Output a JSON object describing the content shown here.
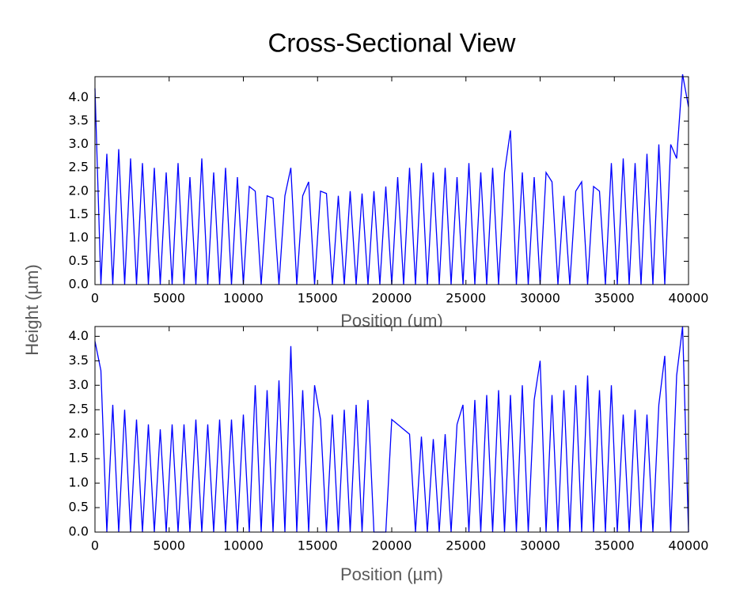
{
  "chart_data": [
    {
      "type": "line",
      "title": "Cross-Sectional View",
      "y_label": "Height (µm)",
      "x_label": "Position (um)",
      "color": "#0000ff",
      "x": [
        0,
        400,
        800,
        1200,
        1600,
        2000,
        2400,
        2800,
        3200,
        3600,
        4000,
        4400,
        4800,
        5200,
        5600,
        6000,
        6400,
        6800,
        7200,
        7600,
        8000,
        8400,
        8800,
        9200,
        9600,
        10000,
        10400,
        10800,
        11200,
        11600,
        12000,
        12400,
        12800,
        13200,
        13600,
        14000,
        14400,
        14800,
        15200,
        15600,
        16000,
        16400,
        16800,
        17200,
        17600,
        18000,
        18400,
        18800,
        19200,
        19600,
        20000,
        20400,
        20800,
        21200,
        21600,
        22000,
        22400,
        22800,
        23200,
        23600,
        24000,
        24400,
        24800,
        25200,
        25600,
        26000,
        26400,
        26800,
        27200,
        27600,
        28000,
        28400,
        28800,
        29200,
        29600,
        30000,
        30400,
        30800,
        31200,
        31600,
        32000,
        32400,
        32800,
        33200,
        33600,
        34000,
        34400,
        34800,
        35200,
        35600,
        36000,
        36400,
        36800,
        37200,
        37600,
        38000,
        38400,
        38800,
        39200,
        39600,
        40000
      ],
      "values": [
        4.2,
        0,
        2.8,
        0,
        2.9,
        0,
        2.7,
        0,
        2.6,
        0,
        2.5,
        0,
        2.4,
        0,
        2.6,
        0,
        2.3,
        0,
        2.7,
        0,
        2.4,
        0,
        2.5,
        0,
        2.3,
        0,
        2.1,
        2.0,
        0,
        1.9,
        1.85,
        0,
        1.9,
        2.5,
        0,
        1.9,
        2.2,
        0,
        2.0,
        1.95,
        0,
        1.9,
        0,
        2.0,
        0,
        1.95,
        0,
        2.0,
        0,
        2.1,
        0,
        2.3,
        0,
        2.5,
        0,
        2.6,
        0,
        2.4,
        0,
        2.5,
        0,
        2.3,
        0,
        2.6,
        0,
        2.4,
        0,
        2.5,
        0,
        2.4,
        3.3,
        0,
        2.4,
        0,
        2.3,
        0,
        2.4,
        2.2,
        0,
        1.9,
        0,
        2.0,
        2.2,
        0,
        2.1,
        2.0,
        0,
        2.6,
        0,
        2.7,
        0,
        2.6,
        0,
        2.8,
        0,
        3.0,
        0,
        3.0,
        2.7,
        4.5,
        3.8
      ],
      "xlim": [
        0,
        40000
      ],
      "xticks": [
        0,
        5000,
        10000,
        15000,
        20000,
        25000,
        30000,
        35000,
        40000
      ],
      "ylim": [
        0,
        4.45
      ],
      "yticks": [
        {
          "value": 0,
          "label": "0.0"
        },
        0.5,
        {
          "value": 1,
          "label": "1.0"
        },
        1.5,
        {
          "value": 2,
          "label": "2.0"
        },
        2.5,
        {
          "value": 3,
          "label": "3.0"
        },
        3.5,
        {
          "value": 4,
          "label": "4.0"
        }
      ]
    },
    {
      "type": "line",
      "x_label": "Position (µm)",
      "color": "#0000ff",
      "x": [
        0,
        400,
        800,
        1200,
        1600,
        2000,
        2400,
        2800,
        3200,
        3600,
        4000,
        4400,
        4800,
        5200,
        5600,
        6000,
        6400,
        6800,
        7200,
        7600,
        8000,
        8400,
        8800,
        9200,
        9600,
        10000,
        10400,
        10800,
        11200,
        11600,
        12000,
        12400,
        12800,
        13200,
        13600,
        14000,
        14400,
        14800,
        15200,
        15600,
        16000,
        16400,
        16800,
        17200,
        17600,
        18000,
        18400,
        18800,
        19200,
        19600,
        20000,
        20400,
        20800,
        21200,
        21600,
        22000,
        22400,
        22800,
        23200,
        23600,
        24000,
        24400,
        24800,
        25200,
        25600,
        26000,
        26400,
        26800,
        27200,
        27600,
        28000,
        28400,
        28800,
        29200,
        29600,
        30000,
        30400,
        30800,
        31200,
        31600,
        32000,
        32400,
        32800,
        33200,
        33600,
        34000,
        34400,
        34800,
        35200,
        35600,
        36000,
        36400,
        36800,
        37200,
        37600,
        38000,
        38400,
        38800,
        39200,
        39600,
        40000
      ],
      "values": [
        3.9,
        3.3,
        0,
        2.6,
        0,
        2.5,
        0,
        2.3,
        0,
        2.2,
        0,
        2.1,
        0,
        2.2,
        0,
        2.2,
        0,
        2.3,
        0,
        2.2,
        0,
        2.3,
        0,
        2.3,
        0,
        2.4,
        0,
        3.0,
        0,
        2.9,
        0,
        3.1,
        0,
        3.8,
        0,
        2.9,
        0,
        3.0,
        2.3,
        0,
        2.4,
        0,
        2.5,
        0,
        2.6,
        0,
        2.7,
        0,
        0,
        0,
        2.3,
        2.2,
        2.1,
        2.0,
        0,
        1.95,
        0,
        1.9,
        0,
        2.0,
        0,
        2.2,
        2.6,
        0,
        2.7,
        0,
        2.8,
        0,
        2.9,
        0,
        2.8,
        0,
        3.0,
        0,
        2.7,
        3.5,
        0,
        2.8,
        0,
        2.9,
        0,
        3.0,
        0,
        3.2,
        0,
        2.9,
        0,
        3.0,
        0,
        2.4,
        0,
        2.5,
        0,
        2.4,
        0,
        2.6,
        3.6,
        0,
        3.2,
        4.2,
        0
      ],
      "xlim": [
        0,
        40000
      ],
      "xticks": [
        0,
        5000,
        10000,
        15000,
        20000,
        25000,
        30000,
        35000,
        40000
      ],
      "ylim": [
        0,
        4.2
      ],
      "yticks": [
        {
          "value": 0,
          "label": "0.0"
        },
        0.5,
        {
          "value": 1,
          "label": "1.0"
        },
        1.5,
        {
          "value": 2,
          "label": "2.0"
        },
        2.5,
        {
          "value": 3,
          "label": "3.0"
        },
        3.5,
        {
          "value": 4,
          "label": "4.0"
        }
      ]
    }
  ]
}
